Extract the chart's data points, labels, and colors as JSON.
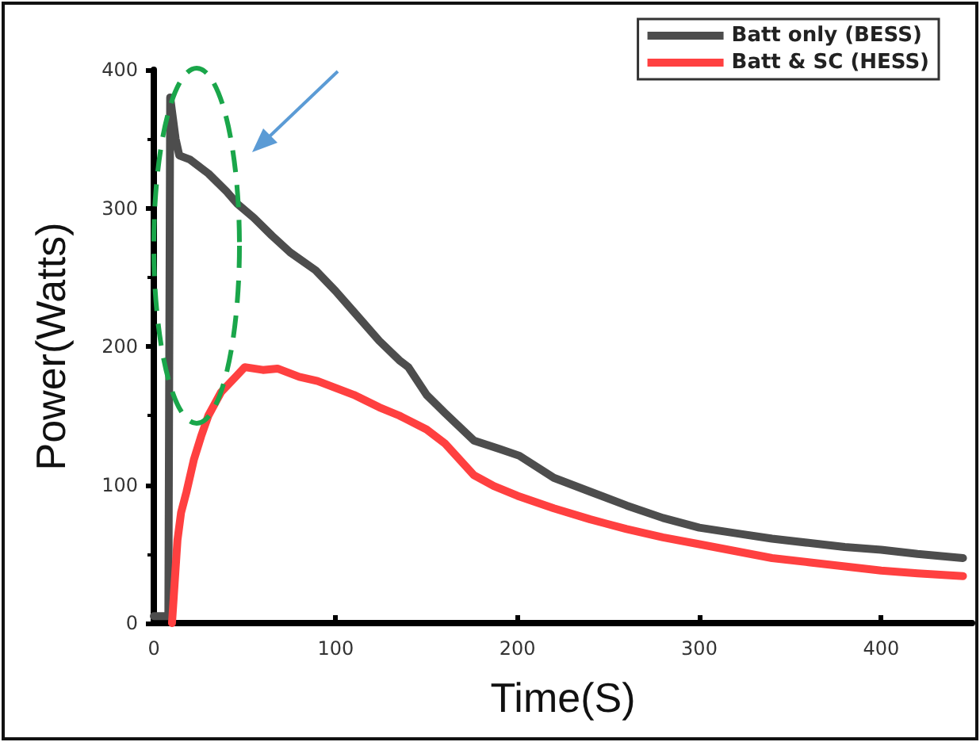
{
  "chart_data": {
    "type": "line",
    "xlabel": "Time(S)",
    "ylabel": "Power(Watts)",
    "xlim": [
      0,
      450
    ],
    "xticks": [
      0,
      100,
      200,
      300,
      400
    ],
    "ylim": [
      0,
      400
    ],
    "yticks": [
      0,
      100,
      200,
      300,
      400
    ],
    "grid": false,
    "legend": "top right",
    "marker": "none",
    "line_style": "solid",
    "series": [
      {
        "name": "Batt only (BESS)",
        "color": "#4d4d4d",
        "x": [
          0,
          8,
          9,
          10,
          12,
          14,
          20,
          30,
          40,
          46,
          55,
          65,
          75,
          89,
          100,
          110,
          124,
          135,
          140,
          150,
          160,
          176,
          190,
          201,
          220,
          240,
          260,
          280,
          300,
          320,
          340,
          360,
          380,
          400,
          420,
          445
        ],
        "values": [
          5,
          5,
          380,
          370,
          350,
          338,
          335,
          325,
          312,
          303,
          293,
          280,
          268,
          255,
          240,
          225,
          204,
          190,
          185,
          165,
          152,
          132,
          126,
          121,
          105,
          95,
          85,
          76,
          69,
          65,
          61,
          58,
          55,
          53,
          50,
          47
        ]
      },
      {
        "name": "Batt & SC (HESS)",
        "color": "#ff4040",
        "x": [
          10,
          11,
          13,
          15,
          18,
          22,
          26,
          30,
          37,
          45,
          50,
          60,
          68,
          80,
          90,
          100,
          110,
          124,
          135,
          150,
          160,
          176,
          187,
          200,
          220,
          240,
          260,
          280,
          300,
          320,
          340,
          360,
          380,
          400,
          420,
          445
        ],
        "values": [
          0,
          20,
          60,
          80,
          95,
          118,
          135,
          150,
          167,
          178,
          185,
          183,
          184,
          178,
          175,
          170,
          165,
          156,
          150,
          140,
          130,
          107,
          99,
          92,
          83,
          75,
          68,
          62,
          57,
          52,
          47,
          44,
          41,
          38,
          36,
          34
        ]
      }
    ]
  }
}
